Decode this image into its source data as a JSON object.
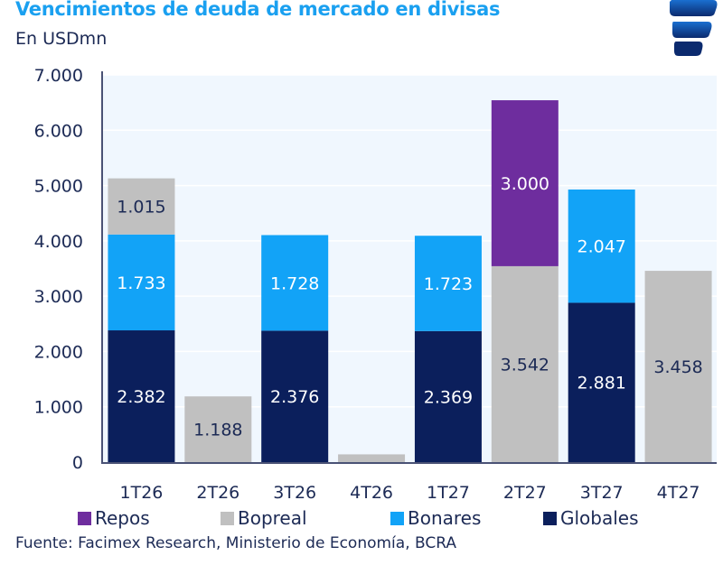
{
  "header": {
    "title": "Vencimientos de deuda de mercado en divisas",
    "subtitle": "En USDmn",
    "logo_icon": "facimex-logo-icon"
  },
  "source": "Fuente: Facimex Research, Ministerio de Economía, BCRA",
  "chart_data": {
    "type": "bar",
    "stacked": true,
    "title": "Vencimientos de deuda de mercado en divisas",
    "subtitle": "En USDmn",
    "xlabel": "",
    "ylabel": "",
    "ylim": [
      0,
      7000
    ],
    "yticks": [
      0,
      1000,
      2000,
      3000,
      4000,
      5000,
      6000,
      7000
    ],
    "ytick_labels": [
      "0",
      "1.000",
      "2.000",
      "3.000",
      "4.000",
      "5.000",
      "6.000",
      "7.000"
    ],
    "grid": true,
    "legend_position": "bottom",
    "categories": [
      "1T26",
      "2T26",
      "3T26",
      "4T26",
      "1T27",
      "2T27",
      "3T27",
      "4T27"
    ],
    "series": [
      {
        "name": "Globales",
        "color": "#0b1f5c",
        "label_color": "#ffffff",
        "values": [
          2382,
          0,
          2376,
          0,
          2369,
          0,
          2881,
          0
        ],
        "labels": [
          "2.382",
          "",
          "2.376",
          "",
          "2.369",
          "",
          "2.881",
          ""
        ]
      },
      {
        "name": "Bonares",
        "color": "#12a3f7",
        "label_color": "#ffffff",
        "values": [
          1733,
          0,
          1728,
          0,
          1723,
          0,
          2047,
          0
        ],
        "labels": [
          "1.733",
          "",
          "1.728",
          "",
          "1.723",
          "",
          "2.047",
          ""
        ]
      },
      {
        "name": "Bopreal",
        "color": "#c0c0c0",
        "label_color": "#1c2a55",
        "values": [
          1015,
          1188,
          0,
          140,
          0,
          3542,
          0,
          3458
        ],
        "labels": [
          "1.015",
          "1.188",
          "",
          "",
          "",
          "3.542",
          "",
          "3.458"
        ]
      },
      {
        "name": "Repos",
        "color": "#6e2d9e",
        "label_color": "#ffffff",
        "values": [
          0,
          0,
          0,
          0,
          0,
          3000,
          0,
          0
        ],
        "labels": [
          "",
          "",
          "",
          "",
          "",
          "3.000",
          "",
          ""
        ]
      }
    ],
    "legend": [
      {
        "name": "Repos",
        "color": "#6e2d9e"
      },
      {
        "name": "Bopreal",
        "color": "#c0c0c0"
      },
      {
        "name": "Bonares",
        "color": "#12a3f7"
      },
      {
        "name": "Globales",
        "color": "#0b1f5c"
      }
    ],
    "colors": {
      "plot_background": "#f0f7fe",
      "gridline": "#ffffff",
      "axis": "#4a5275",
      "text": "#1c2a55"
    }
  }
}
